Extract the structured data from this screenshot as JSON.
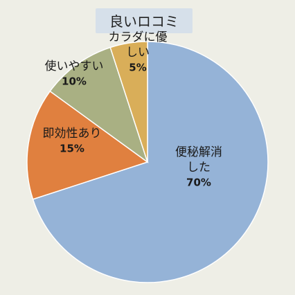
{
  "chart_data": {
    "type": "pie",
    "title": "良いロコミ",
    "start_angle_deg": 0,
    "direction": "clockwise",
    "slices": [
      {
        "label_lines": [
          "便秘解消",
          "した"
        ],
        "value": 70,
        "value_label": "70%",
        "color": "#95b3d7"
      },
      {
        "label_lines": [
          "即効性あり"
        ],
        "value": 15,
        "value_label": "15%",
        "color": "#e0803f"
      },
      {
        "label_lines": [
          "使いやすい"
        ],
        "value": 10,
        "value_label": "10%",
        "color": "#a9b083"
      },
      {
        "label_lines": [
          "カラダに優",
          "しい"
        ],
        "value": 5,
        "value_label": "5%",
        "color": "#d9ae59"
      }
    ],
    "colors": {
      "background": "#eeeee6",
      "title_box": "#d6e0ea",
      "slice_border": "#ffffff"
    }
  }
}
